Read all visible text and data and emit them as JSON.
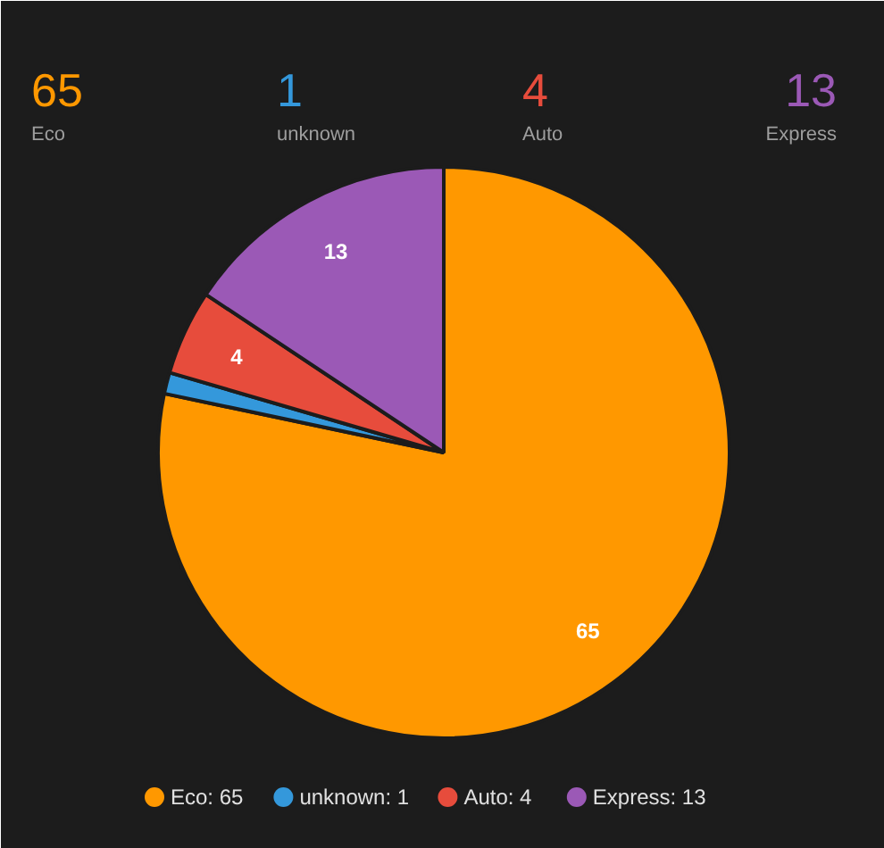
{
  "chart_data": {
    "type": "pie",
    "categories": [
      "Eco: 65",
      "unknown: 1",
      "Auto: 4",
      "Express: 13"
    ],
    "values": [
      65,
      1,
      4,
      13
    ],
    "colors": [
      "#ff9800",
      "#3498db",
      "#e74c3c",
      "#9b59b6"
    ],
    "value_labels": [
      "65",
      null,
      "4",
      "13"
    ],
    "annotations": [
      "65",
      "Eco",
      "1",
      "unknown",
      "4",
      "Auto",
      "13",
      "Express"
    ],
    "legend": "bottom"
  }
}
